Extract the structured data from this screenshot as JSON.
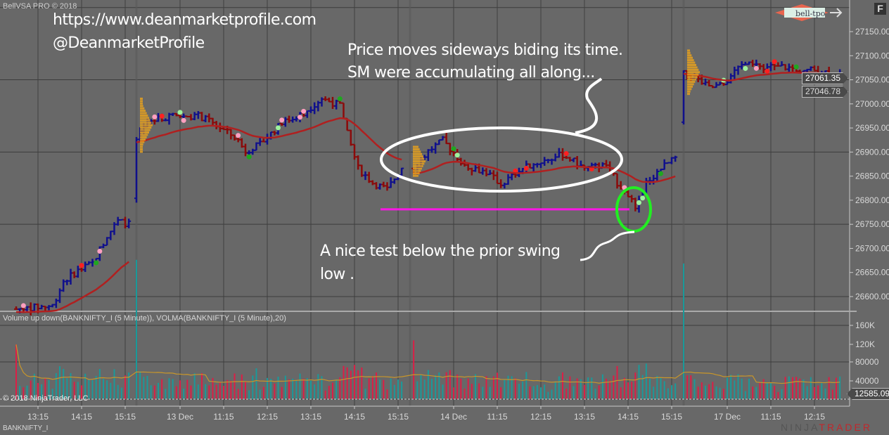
{
  "window": {
    "title": "BellVSA PRO © 2018",
    "f_button": "F",
    "instrument": "BANKNIFTY_I",
    "copyright": "© 2018 NinjaTrader, LLC",
    "brand_left": "NINJA",
    "brand_right": "TRADER",
    "logo_text": "bell-tpo"
  },
  "annotations": {
    "url": "https://www.deanmarketprofile.com",
    "handle": "@DeanmarketProfile",
    "note1_line1": "Price moves sideways biding its time.",
    "note1_line2": "SM were accumulating all along...",
    "note2_line1": "A nice test below the prior swing",
    "note2_line2": "low ."
  },
  "colors": {
    "background": "#686868",
    "up_bar": "#10108c",
    "down_bar": "#8b0a0a",
    "vwap": "#b02020",
    "volume_up": "#1a9a9a",
    "volume_down": "#dc1e46",
    "volma": "#c8962a",
    "support_line": "#ff14e6",
    "highlight_circle": "#22ee22"
  },
  "chart_data": [
    {
      "type": "bar",
      "subtype": "ohlc",
      "panel": "price",
      "ylim": [
        26575,
        27200
      ],
      "y_ticks": [
        "27150.00",
        "27100.00",
        "27050.00",
        "27000.00",
        "26950.00",
        "26900.00",
        "26850.00",
        "26800.00",
        "26750.00",
        "26700.00",
        "26650.00",
        "26600.00"
      ],
      "x_ticks": [
        "13:15",
        "14:15",
        "15:15",
        "13 Dec",
        "11:15",
        "12:15",
        "13:15",
        "14:15",
        "15:15",
        "14 Dec",
        "11:15",
        "12:15",
        "13:15",
        "14:15",
        "15:15",
        "17 Dec",
        "11:15",
        "12:15"
      ],
      "last_price": "27061.35",
      "vwap_price": "27046.78",
      "support_level": 26781,
      "approx_price_path": [
        [
          "12 Dec",
          "12:45",
          26574
        ],
        [
          "12 Dec",
          "13:35",
          26581
        ],
        [
          "12 Dec",
          "13:50",
          26632
        ],
        [
          "12 Dec",
          "14:10",
          26654
        ],
        [
          "12 Dec",
          "14:30",
          26669
        ],
        [
          "12 Dec",
          "14:50",
          26727
        ],
        [
          "12 Dec",
          "15:05",
          26756
        ],
        [
          "12 Dec",
          "15:25",
          26749
        ],
        [
          "13 Dec",
          "09:15",
          26924
        ],
        [
          "13 Dec",
          "09:30",
          26960
        ],
        [
          "13 Dec",
          "10:00",
          26975
        ],
        [
          "13 Dec",
          "10:40",
          26975
        ],
        [
          "13 Dec",
          "11:00",
          26960
        ],
        [
          "13 Dec",
          "11:30",
          26931
        ],
        [
          "13 Dec",
          "11:45",
          26902
        ],
        [
          "13 Dec",
          "12:05",
          26917
        ],
        [
          "13 Dec",
          "12:35",
          26960
        ],
        [
          "13 Dec",
          "13:05",
          26982
        ],
        [
          "13 Dec",
          "13:30",
          27011
        ],
        [
          "13 Dec",
          "13:55",
          26997
        ],
        [
          "13 Dec",
          "14:05",
          26938
        ],
        [
          "13 Dec",
          "14:20",
          26866
        ],
        [
          "13 Dec",
          "14:40",
          26836
        ],
        [
          "13 Dec",
          "15:00",
          26822
        ],
        [
          "13 Dec",
          "15:25",
          26880
        ],
        [
          "14 Dec",
          "09:20",
          26866
        ],
        [
          "14 Dec",
          "09:40",
          26902
        ],
        [
          "14 Dec",
          "10:00",
          26924
        ],
        [
          "14 Dec",
          "10:30",
          26873
        ],
        [
          "14 Dec",
          "11:00",
          26858
        ],
        [
          "14 Dec",
          "11:20",
          26833
        ],
        [
          "14 Dec",
          "11:50",
          26866
        ],
        [
          "14 Dec",
          "12:15",
          26880
        ],
        [
          "14 Dec",
          "12:45",
          26895
        ],
        [
          "14 Dec",
          "13:15",
          26866
        ],
        [
          "14 Dec",
          "13:45",
          26873
        ],
        [
          "14 Dec",
          "14:00",
          26836
        ],
        [
          "14 Dec",
          "14:15",
          26814
        ],
        [
          "14 Dec",
          "14:25",
          26778
        ],
        [
          "14 Dec",
          "14:40",
          26836
        ],
        [
          "14 Dec",
          "15:00",
          26866
        ],
        [
          "14 Dec",
          "15:20",
          26887
        ],
        [
          "14 Dec",
          "15:25",
          26880
        ],
        [
          "17 Dec",
          "09:15",
          27062
        ],
        [
          "17 Dec",
          "09:30",
          27055
        ],
        [
          "17 Dec",
          "09:50",
          27033
        ],
        [
          "17 Dec",
          "10:10",
          27040
        ],
        [
          "17 Dec",
          "10:35",
          27084
        ],
        [
          "17 Dec",
          "11:00",
          27077
        ],
        [
          "17 Dec",
          "11:30",
          27077
        ],
        [
          "17 Dec",
          "12:00",
          27070
        ],
        [
          "17 Dec",
          "12:20",
          27070
        ],
        [
          "17 Dec",
          "12:40",
          27062
        ],
        [
          "17 Dec",
          "12:55",
          27058
        ]
      ]
    },
    {
      "type": "bar",
      "panel": "volume",
      "title": "Volume up down(BANKNIFTY_I (5 Minute)), VOLMA(BANKNIFTY_I (5 Minute),20)",
      "ylim": [
        0,
        180000
      ],
      "y_ticks": [
        "160K",
        "120K",
        "80000",
        "40000"
      ],
      "last_volma": "12585.09"
    }
  ]
}
